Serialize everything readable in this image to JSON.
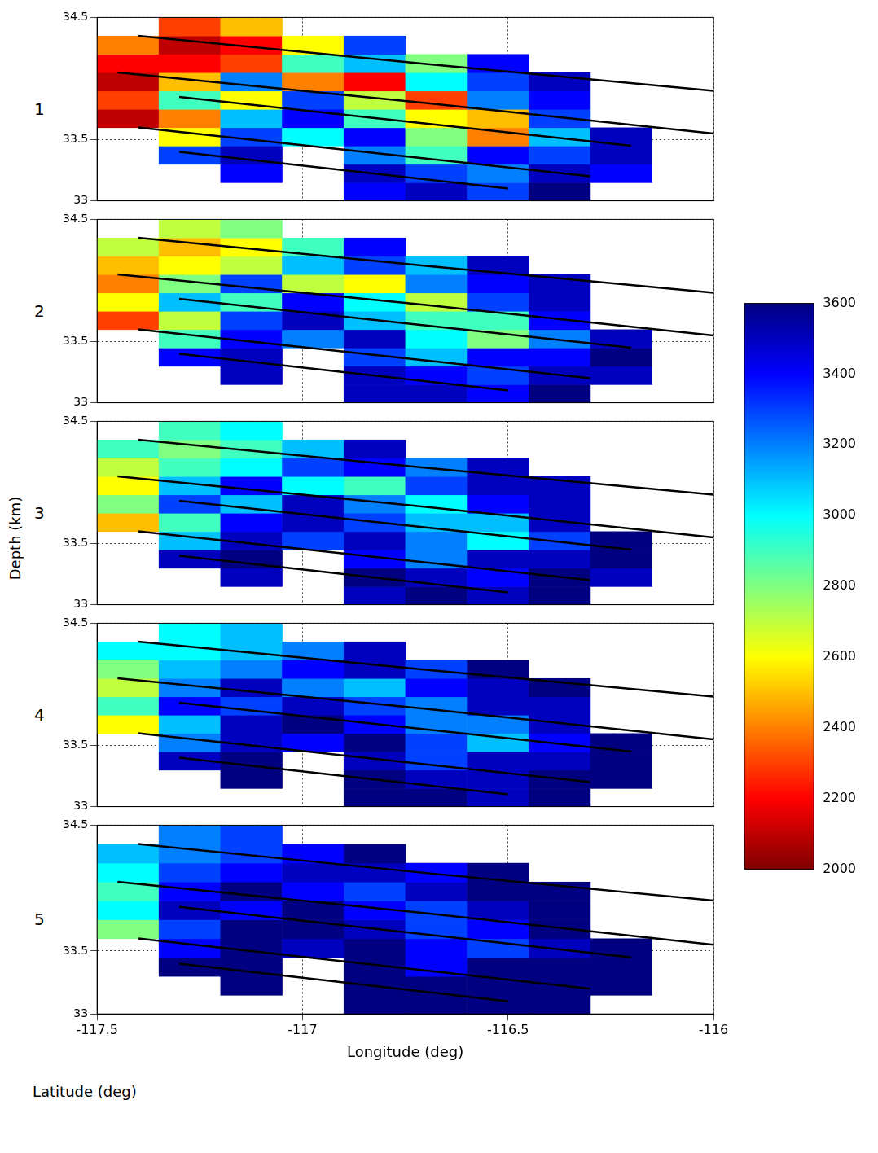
{
  "chart_data": {
    "type": "heatmap",
    "x_label": "Longitude (deg)",
    "y_label": "Latitude (deg)",
    "z_label": "Depth (km)",
    "xlim": [
      -117.5,
      -116
    ],
    "xticks": [
      -117.5,
      -117,
      -116.5,
      -116
    ],
    "ylim": [
      33,
      34.5
    ],
    "yticks": [
      33,
      33.5,
      34.5
    ],
    "grid": true,
    "x": [
      -117.425,
      -117.275,
      -117.125,
      -116.975,
      -116.825,
      -116.675,
      -116.525,
      -116.375,
      -116.225,
      -116.075
    ],
    "y": [
      33.075,
      33.225,
      33.375,
      33.525,
      33.675,
      33.825,
      33.975,
      34.125,
      34.275,
      34.425
    ],
    "slices": [
      {
        "depth": 1,
        "cells": [
          [
            null,
            null,
            null,
            null,
            3400,
            3500,
            3300,
            3600,
            null,
            null
          ],
          [
            null,
            null,
            3400,
            null,
            3500,
            3300,
            3200,
            3500,
            3400,
            null
          ],
          [
            null,
            3300,
            3500,
            null,
            3200,
            2900,
            3400,
            3300,
            3500,
            null
          ],
          [
            null,
            2600,
            3300,
            3000,
            3400,
            2800,
            2400,
            3100,
            3500,
            null
          ],
          [
            2100,
            2400,
            3100,
            3400,
            2900,
            2600,
            2500,
            3300,
            null,
            null
          ],
          [
            2300,
            2900,
            2600,
            3300,
            2700,
            2300,
            3200,
            3400,
            null,
            null
          ],
          [
            2100,
            2500,
            3200,
            2400,
            2200,
            3000,
            3300,
            3500,
            null,
            null
          ],
          [
            2200,
            2200,
            2300,
            2900,
            3100,
            2800,
            3400,
            null,
            null,
            null
          ],
          [
            2400,
            2100,
            2200,
            2600,
            3300,
            null,
            null,
            null,
            null,
            null
          ],
          [
            null,
            2300,
            2500,
            null,
            null,
            null,
            null,
            null,
            null,
            null
          ]
        ]
      },
      {
        "depth": 2,
        "cells": [
          [
            null,
            null,
            null,
            null,
            3500,
            3500,
            3400,
            3600,
            null,
            null
          ],
          [
            null,
            null,
            3500,
            null,
            3500,
            3400,
            3300,
            3500,
            3500,
            null
          ],
          [
            null,
            3400,
            3500,
            null,
            3300,
            3100,
            3400,
            3400,
            3600,
            null
          ],
          [
            null,
            2900,
            3400,
            3200,
            3500,
            3000,
            2800,
            3200,
            3500,
            null
          ],
          [
            2300,
            2700,
            3300,
            3500,
            3100,
            2900,
            2900,
            3400,
            null,
            null
          ],
          [
            2600,
            3100,
            2900,
            3400,
            3000,
            2700,
            3300,
            3500,
            null,
            null
          ],
          [
            2400,
            2800,
            3300,
            2700,
            2600,
            3200,
            3400,
            3500,
            null,
            null
          ],
          [
            2500,
            2600,
            2700,
            3100,
            3300,
            3100,
            3500,
            null,
            null,
            null
          ],
          [
            2700,
            2500,
            2600,
            2900,
            3400,
            null,
            null,
            null,
            null,
            null
          ],
          [
            null,
            2700,
            2800,
            null,
            null,
            null,
            null,
            null,
            null,
            null
          ]
        ]
      },
      {
        "depth": 3,
        "cells": [
          [
            null,
            null,
            null,
            null,
            3500,
            3600,
            3500,
            3600,
            null,
            null
          ],
          [
            null,
            null,
            3500,
            null,
            3600,
            3500,
            3400,
            3600,
            3500,
            null
          ],
          [
            null,
            3500,
            3600,
            null,
            3400,
            3200,
            3500,
            3500,
            3600,
            null
          ],
          [
            null,
            3100,
            3500,
            3300,
            3500,
            3200,
            3000,
            3300,
            3600,
            null
          ],
          [
            2500,
            2900,
            3400,
            3500,
            3300,
            3100,
            3100,
            3500,
            null,
            null
          ],
          [
            2800,
            3300,
            3100,
            3500,
            3200,
            3000,
            3400,
            3500,
            null,
            null
          ],
          [
            2600,
            3100,
            3400,
            3000,
            2900,
            3300,
            3500,
            3500,
            null,
            null
          ],
          [
            2700,
            2900,
            3000,
            3300,
            3400,
            3200,
            3500,
            null,
            null,
            null
          ],
          [
            2900,
            2800,
            2900,
            3100,
            3500,
            null,
            null,
            null,
            null,
            null
          ],
          [
            null,
            2900,
            3000,
            null,
            null,
            null,
            null,
            null,
            null,
            null
          ]
        ]
      },
      {
        "depth": 4,
        "cells": [
          [
            null,
            null,
            null,
            null,
            3600,
            3600,
            3500,
            3600,
            null,
            null
          ],
          [
            null,
            null,
            3600,
            null,
            3600,
            3500,
            3500,
            3600,
            3600,
            null
          ],
          [
            null,
            3500,
            3600,
            null,
            3500,
            3300,
            3500,
            3500,
            3600,
            null
          ],
          [
            null,
            3200,
            3500,
            3400,
            3600,
            3300,
            3100,
            3400,
            3600,
            null
          ],
          [
            2600,
            3100,
            3500,
            3600,
            3400,
            3200,
            3200,
            3500,
            null,
            null
          ],
          [
            2900,
            3400,
            3300,
            3500,
            3300,
            3200,
            3500,
            3500,
            null,
            null
          ],
          [
            2700,
            3200,
            3500,
            3200,
            3100,
            3400,
            3500,
            3600,
            null,
            null
          ],
          [
            2800,
            3100,
            3200,
            3400,
            3500,
            3300,
            3600,
            null,
            null,
            null
          ],
          [
            3000,
            3000,
            3100,
            3200,
            3500,
            null,
            null,
            null,
            null,
            null
          ],
          [
            null,
            3000,
            3100,
            null,
            null,
            null,
            null,
            null,
            null,
            null
          ]
        ]
      },
      {
        "depth": 5,
        "cells": [
          [
            null,
            null,
            null,
            null,
            3600,
            3600,
            3600,
            3600,
            null,
            null
          ],
          [
            null,
            null,
            3600,
            null,
            3600,
            3600,
            3600,
            3600,
            3600,
            null
          ],
          [
            null,
            3600,
            3600,
            null,
            3600,
            3400,
            3600,
            3600,
            3600,
            null
          ],
          [
            null,
            3400,
            3600,
            3500,
            3600,
            3400,
            3300,
            3500,
            3600,
            null
          ],
          [
            2800,
            3300,
            3600,
            3600,
            3500,
            3300,
            3400,
            3600,
            null,
            null
          ],
          [
            3000,
            3500,
            3400,
            3600,
            3400,
            3300,
            3500,
            3600,
            null,
            null
          ],
          [
            2900,
            3400,
            3600,
            3400,
            3300,
            3500,
            3600,
            3600,
            null,
            null
          ],
          [
            3000,
            3300,
            3400,
            3500,
            3500,
            3400,
            3600,
            null,
            null,
            null
          ],
          [
            3100,
            3200,
            3300,
            3400,
            3600,
            null,
            null,
            null,
            null,
            null
          ],
          [
            null,
            3200,
            3300,
            null,
            null,
            null,
            null,
            null,
            null,
            null
          ]
        ]
      }
    ],
    "colorbar": {
      "range": [
        2000,
        3600
      ],
      "ticks": [
        2000,
        2200,
        2400,
        2600,
        2800,
        3000,
        3200,
        3400,
        3600
      ]
    },
    "faults": [
      {
        "x": [
          -117.4,
          -116.7,
          -116.0
        ],
        "y": [
          34.35,
          34.12,
          33.9
        ]
      },
      {
        "x": [
          -117.45,
          -116.7,
          -116.0
        ],
        "y": [
          34.05,
          33.8,
          33.55
        ]
      },
      {
        "x": [
          -117.3,
          -116.75,
          -116.2
        ],
        "y": [
          33.85,
          33.65,
          33.45
        ]
      },
      {
        "x": [
          -117.4,
          -116.85,
          -116.3
        ],
        "y": [
          33.6,
          33.4,
          33.2
        ]
      },
      {
        "x": [
          -117.3,
          -116.9,
          -116.5
        ],
        "y": [
          33.4,
          33.25,
          33.1
        ]
      }
    ]
  }
}
